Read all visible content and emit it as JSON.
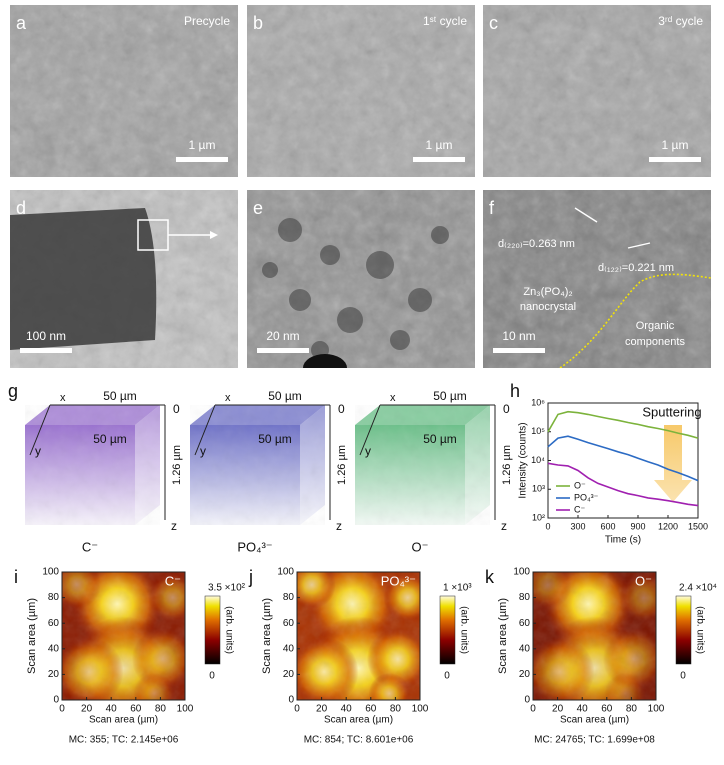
{
  "micrographs": [
    {
      "letter": "a",
      "label": "Precycle",
      "scale_bar": "1 µm"
    },
    {
      "letter": "b",
      "label": "1ˢᵗ cycle",
      "scale_bar": "1 µm"
    },
    {
      "letter": "c",
      "label": "3ʳᵈ cycle",
      "scale_bar": "1 µm"
    },
    {
      "letter": "d",
      "scale_bar": "100 nm"
    },
    {
      "letter": "e",
      "scale_bar": "20 nm"
    },
    {
      "letter": "f",
      "scale_bar": "10 nm",
      "annotations": [
        "d₍₂₂₀₎=0.263 nm",
        "d₍₁₂₂₎=0.221 nm",
        "Zn₃(PO₄)₂",
        "nanocrystal",
        "Organic",
        "components"
      ]
    }
  ],
  "tof_sims_3d": {
    "letter": "g",
    "axis_labels": {
      "x": "x",
      "y": "y",
      "z": "z",
      "width": "50 µm",
      "depth": "50 µm",
      "height": "1.26 µm",
      "origin": "0"
    },
    "cubes": [
      {
        "ion": "C⁻",
        "color": "#9a72d0"
      },
      {
        "ion": "PO₄³⁻",
        "color": "#6f72c8"
      },
      {
        "ion": "O⁻",
        "color": "#6cc08a"
      }
    ]
  },
  "chart_data": {
    "type": "line",
    "panel_label": "h",
    "annotation": "Sputtering",
    "x_label": "Time (s)",
    "y_label": "Intensity (counts)",
    "log_y": true,
    "legend": "lower left",
    "x": [
      0,
      100,
      200,
      300,
      400,
      500,
      600,
      700,
      800,
      900,
      1000,
      1100,
      1200,
      1300,
      1400,
      1500
    ],
    "series": [
      {
        "name": "O⁻",
        "color": "#7cb33c",
        "values": [
          100000,
          400000,
          500000,
          460000,
          400000,
          340000,
          290000,
          250000,
          210000,
          180000,
          150000,
          130000,
          110000,
          90000,
          75000,
          60000
        ]
      },
      {
        "name": "PO₄³⁻",
        "color": "#2c6bc4",
        "values": [
          30000,
          60000,
          70000,
          55000,
          42000,
          33000,
          26000,
          20000,
          16000,
          12000,
          9000,
          7000,
          5000,
          3800,
          2800,
          2000
        ]
      },
      {
        "name": "C⁻",
        "color": "#a020b0",
        "values": [
          8000,
          7000,
          6500,
          4500,
          2500,
          1600,
          1200,
          900,
          700,
          600,
          500,
          450,
          400,
          350,
          300,
          270
        ]
      }
    ],
    "xlim": [
      0,
      1500
    ],
    "xticks": [
      0,
      300,
      600,
      900,
      1200,
      1500
    ],
    "ylim": [
      100,
      1000000
    ],
    "yticks": [
      {
        "value": 100,
        "label": "10²"
      },
      {
        "value": 1000,
        "label": "10³"
      },
      {
        "value": 10000,
        "label": "10⁴"
      },
      {
        "value": 100000,
        "label": "10⁵"
      },
      {
        "value": 1000000,
        "label": "10⁶"
      }
    ]
  },
  "maps": {
    "x_label": "Scan area (µm)",
    "y_label": "Scan area (µm)",
    "ticks": [
      0,
      20,
      40,
      60,
      80,
      100
    ],
    "unit": "(arb. units)",
    "min_label": "0",
    "panels": [
      {
        "letter": "i",
        "ion": "C⁻",
        "max_label": "3.5 ×10²",
        "stats": "MC: 355; TC: 2.145e+06"
      },
      {
        "letter": "j",
        "ion": "PO₄³⁻",
        "max_label": "1 ×10³",
        "stats": "MC: 854; TC: 8.601e+06"
      },
      {
        "letter": "k",
        "ion": "O⁻",
        "max_label": "2.4 ×10⁴",
        "stats": "MC: 24765; TC: 1.699e+08"
      }
    ]
  }
}
